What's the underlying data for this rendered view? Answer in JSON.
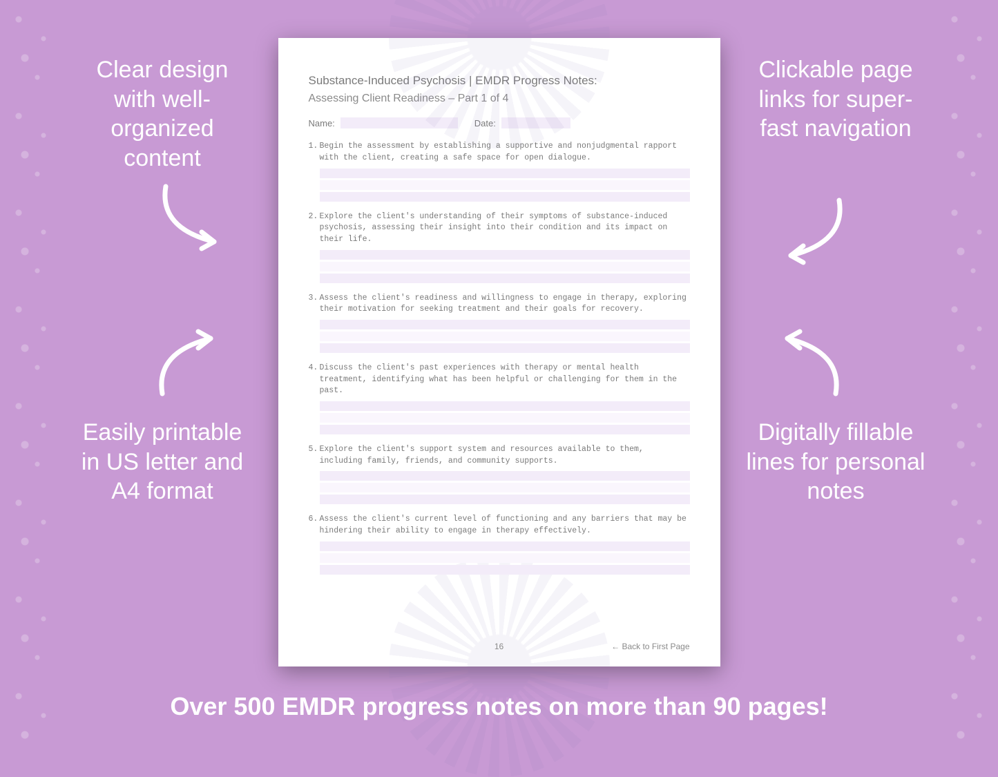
{
  "colors": {
    "background": "#c89ad4",
    "callout_text": "#ffffff",
    "page_bg": "#ffffff",
    "page_text": "#7a7a7a",
    "fill_line_a": "#f3ecf9",
    "fill_line_b": "#faf6fd",
    "shadow": "rgba(0,0,0,0.35)"
  },
  "callouts": {
    "top_left": "Clear design with well-organized content",
    "top_right": "Clickable page links for super-fast navigation",
    "bottom_left": "Easily printable in US letter and A4 format",
    "bottom_right": "Digitally fillable lines for personal notes"
  },
  "banner": "Over 500 EMDR progress notes on more than 90 pages!",
  "page": {
    "title": "Substance-Induced Psychosis | EMDR Progress Notes:",
    "subtitle": "Assessing Client Readiness  – Part 1 of 4",
    "meta": {
      "name_label": "Name:",
      "date_label": "Date:"
    },
    "items": [
      {
        "num": "1.",
        "text": "Begin the assessment by establishing a supportive and nonjudgmental rapport with the client, creating a safe space for open dialogue."
      },
      {
        "num": "2.",
        "text": "Explore the client's understanding of their symptoms of substance-induced psychosis, assessing their insight into their condition and its impact on their life."
      },
      {
        "num": "3.",
        "text": "Assess the client's readiness and willingness to engage in therapy, exploring their motivation for seeking treatment and their goals for recovery."
      },
      {
        "num": "4.",
        "text": "Discuss the client's past experiences with therapy or mental health treatment, identifying what has been helpful or challenging for them in the past."
      },
      {
        "num": "5.",
        "text": "Explore the client's support system and resources available to them, including family, friends, and community supports."
      },
      {
        "num": "6.",
        "text": "Assess the client's current level of functioning and any barriers that may be hindering their ability to engage in therapy effectively."
      }
    ],
    "lines_per_item": 3,
    "footer": {
      "page_number": "16",
      "back_link": "← Back to First Page"
    }
  },
  "typography": {
    "callout_fontsize": 34,
    "banner_fontsize": 36,
    "page_title_fontsize": 17,
    "item_fontsize": 11.5,
    "item_font": "monospace"
  }
}
